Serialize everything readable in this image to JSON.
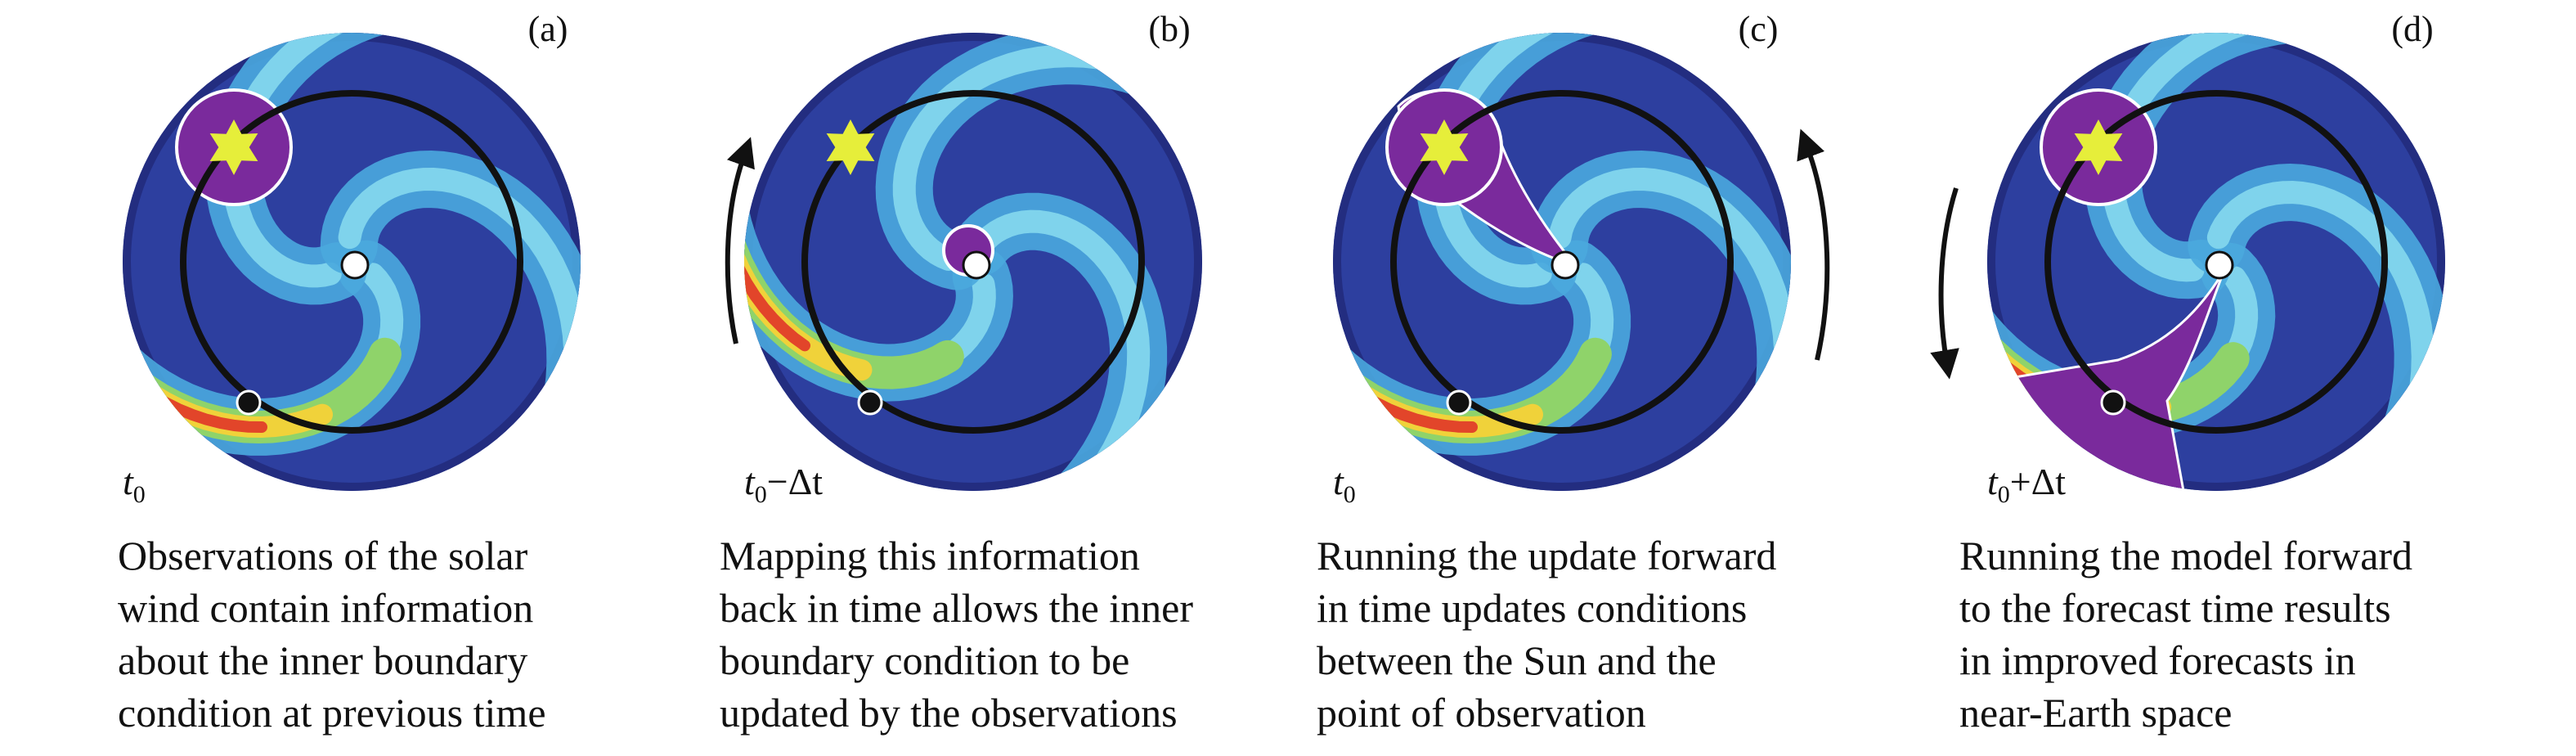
{
  "panels": [
    {
      "label": "(a)",
      "time": {
        "t": "t",
        "sub": "0"
      },
      "caption": [
        "Observations of the solar",
        "wind contain information",
        "about the inner boundary",
        "condition at previous time"
      ]
    },
    {
      "label": "(b)",
      "time": {
        "t": "t",
        "sub": "0",
        "suffix": "−Δt"
      },
      "caption": [
        "Mapping this information",
        "back in time allows the inner",
        "boundary condition to be",
        "updated by the observations"
      ]
    },
    {
      "label": "(c)",
      "time": {
        "t": "t",
        "sub": "0"
      },
      "caption": [
        "Running the update forward",
        "in time updates conditions",
        "between the Sun and the",
        "point of observation"
      ]
    },
    {
      "label": "(d)",
      "time": {
        "t": "t",
        "sub": "0",
        "suffix": "+Δt"
      },
      "caption": [
        "Running the model forward",
        "to the forecast time results",
        "in improved forecasts in",
        "near-Earth space"
      ]
    }
  ]
}
